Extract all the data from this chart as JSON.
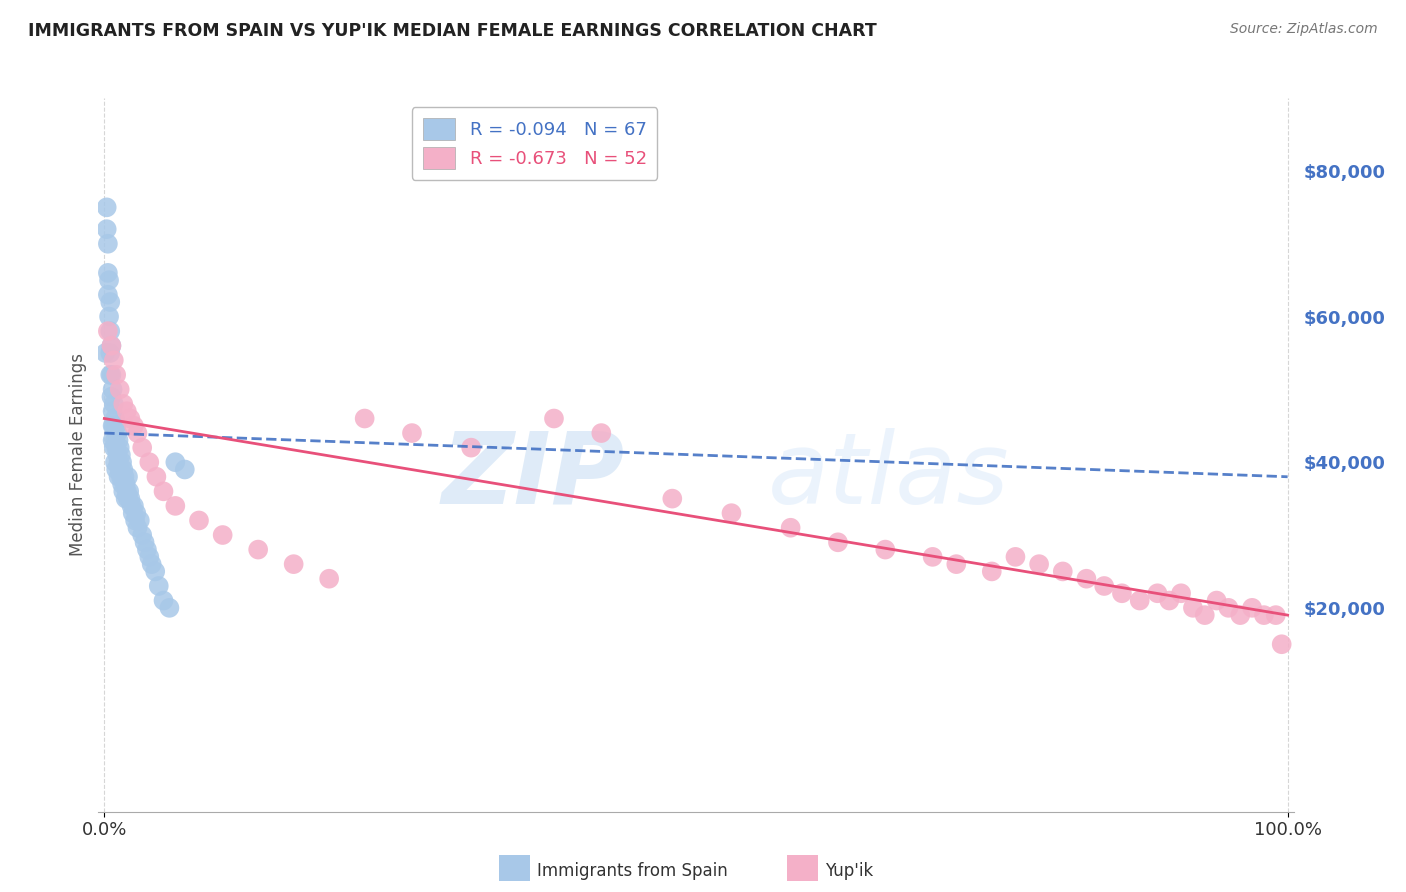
{
  "title": "IMMIGRANTS FROM SPAIN VS YUP'IK MEDIAN FEMALE EARNINGS CORRELATION CHART",
  "source": "Source: ZipAtlas.com",
  "ylabel": "Median Female Earnings",
  "yticks": [
    0,
    20000,
    40000,
    60000,
    80000
  ],
  "ytick_labels": [
    "",
    "$20,000",
    "$40,000",
    "$60,000",
    "$80,000"
  ],
  "ylim": [
    -8000,
    90000
  ],
  "xlim": [
    -0.005,
    1.005
  ],
  "legend_title_spain": "Immigrants from Spain",
  "legend_title_yupik": "Yup'ik",
  "watermark_zip": "ZIP",
  "watermark_atlas": "atlas",
  "background_color": "#ffffff",
  "grid_color": "#cccccc",
  "axis_label_color": "#4472c4",
  "spain_color": "#a8c8e8",
  "yupik_color": "#f4b0c8",
  "spain_line_color": "#4472c4",
  "yupik_line_color": "#e8507a",
  "spain_R": -0.094,
  "spain_N": 67,
  "yupik_R": -0.673,
  "yupik_N": 52,
  "spain_x": [
    0.001,
    0.002,
    0.002,
    0.003,
    0.003,
    0.003,
    0.004,
    0.004,
    0.005,
    0.005,
    0.005,
    0.005,
    0.006,
    0.006,
    0.006,
    0.007,
    0.007,
    0.007,
    0.007,
    0.008,
    0.008,
    0.008,
    0.009,
    0.009,
    0.009,
    0.01,
    0.01,
    0.01,
    0.011,
    0.011,
    0.012,
    0.012,
    0.012,
    0.013,
    0.013,
    0.014,
    0.014,
    0.015,
    0.015,
    0.016,
    0.016,
    0.017,
    0.018,
    0.018,
    0.019,
    0.02,
    0.02,
    0.021,
    0.022,
    0.023,
    0.024,
    0.025,
    0.026,
    0.027,
    0.028,
    0.03,
    0.032,
    0.034,
    0.036,
    0.038,
    0.04,
    0.043,
    0.046,
    0.05,
    0.055,
    0.06,
    0.068
  ],
  "spain_y": [
    55000,
    75000,
    72000,
    70000,
    66000,
    63000,
    65000,
    60000,
    62000,
    58000,
    55000,
    52000,
    56000,
    52000,
    49000,
    50000,
    47000,
    45000,
    43000,
    48000,
    45000,
    42000,
    46000,
    43000,
    40000,
    45000,
    42000,
    39000,
    44000,
    41000,
    43000,
    40000,
    38000,
    42000,
    39000,
    41000,
    38000,
    40000,
    37000,
    39000,
    36000,
    38000,
    37000,
    35000,
    36000,
    38000,
    35000,
    36000,
    35000,
    34000,
    33000,
    34000,
    32000,
    33000,
    31000,
    32000,
    30000,
    29000,
    28000,
    27000,
    26000,
    25000,
    23000,
    21000,
    20000,
    40000,
    39000
  ],
  "yupik_x": [
    0.003,
    0.006,
    0.008,
    0.01,
    0.013,
    0.016,
    0.019,
    0.022,
    0.025,
    0.028,
    0.032,
    0.038,
    0.044,
    0.05,
    0.06,
    0.08,
    0.1,
    0.13,
    0.16,
    0.19,
    0.22,
    0.26,
    0.31,
    0.38,
    0.42,
    0.48,
    0.53,
    0.58,
    0.62,
    0.66,
    0.7,
    0.72,
    0.75,
    0.77,
    0.79,
    0.81,
    0.83,
    0.845,
    0.86,
    0.875,
    0.89,
    0.9,
    0.91,
    0.92,
    0.93,
    0.94,
    0.95,
    0.96,
    0.97,
    0.98,
    0.99,
    0.995
  ],
  "yupik_y": [
    58000,
    56000,
    54000,
    52000,
    50000,
    48000,
    47000,
    46000,
    45000,
    44000,
    42000,
    40000,
    38000,
    36000,
    34000,
    32000,
    30000,
    28000,
    26000,
    24000,
    46000,
    44000,
    42000,
    46000,
    44000,
    35000,
    33000,
    31000,
    29000,
    28000,
    27000,
    26000,
    25000,
    27000,
    26000,
    25000,
    24000,
    23000,
    22000,
    21000,
    22000,
    21000,
    22000,
    20000,
    19000,
    21000,
    20000,
    19000,
    20000,
    19000,
    19000,
    15000
  ],
  "spain_line_x": [
    0.0,
    1.0
  ],
  "spain_line_y": [
    44000,
    38000
  ],
  "yupik_line_x": [
    0.0,
    1.0
  ],
  "yupik_line_y": [
    46000,
    19000
  ]
}
